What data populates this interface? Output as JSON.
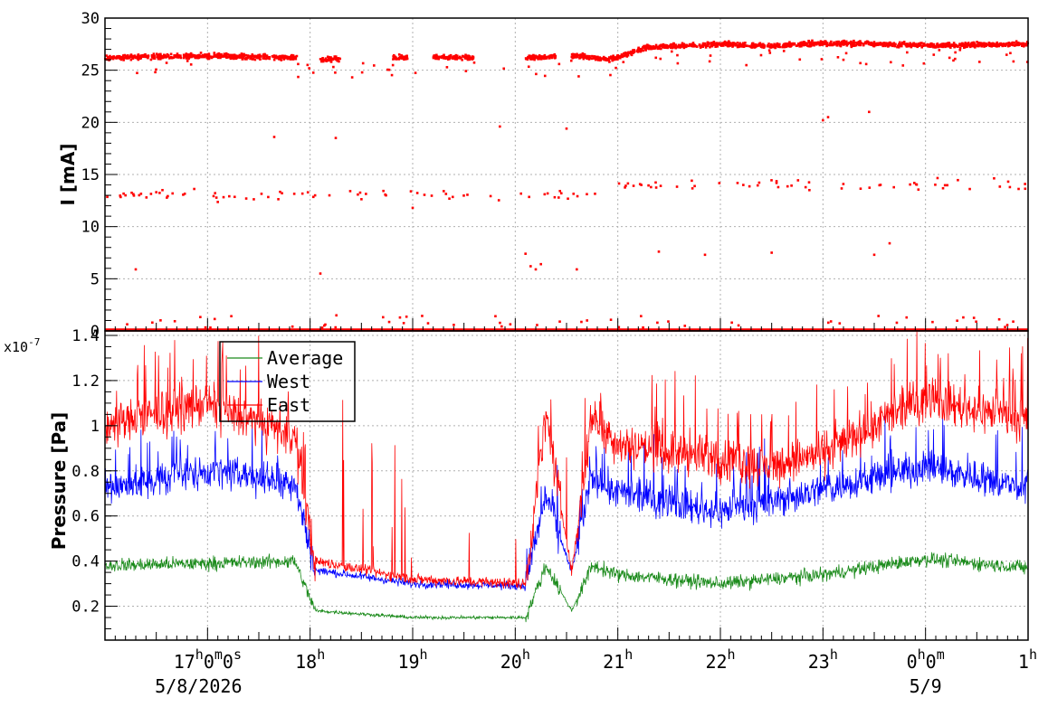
{
  "chart_data": [
    {
      "type": "scatter",
      "ylabel": "I [mA]",
      "ylim": [
        0,
        30
      ],
      "yticks": [
        "0",
        "5",
        "10",
        "15",
        "20",
        "25",
        "30"
      ],
      "grid": true,
      "color": "#ff0000",
      "series": [
        {
          "main_band": [
            {
              "t": 16.0,
              "y": 26.2
            },
            {
              "t": 17.0,
              "y": 26.4
            },
            {
              "t": 17.85,
              "y": 26.2
            },
            {
              "t": 18.1,
              "y": 26.0
            },
            {
              "t": 18.3,
              "y": 26.1
            },
            {
              "t": 18.8,
              "y": 26.2
            },
            {
              "t": 19.5,
              "y": 26.2
            },
            {
              "t": 20.15,
              "y": 26.2
            },
            {
              "t": 20.45,
              "y": 26.3
            },
            {
              "t": 20.6,
              "y": 26.4
            },
            {
              "t": 20.9,
              "y": 26.0
            },
            {
              "t": 21.3,
              "y": 27.2
            },
            {
              "t": 22.0,
              "y": 27.5
            },
            {
              "t": 22.5,
              "y": 27.3
            },
            {
              "t": 23.0,
              "y": 27.6
            },
            {
              "t": 24.0,
              "y": 27.4
            },
            {
              "t": 25.0,
              "y": 27.5
            }
          ],
          "band_segments": [
            [
              16.0,
              17.88
            ],
            [
              18.1,
              18.3
            ],
            [
              18.8,
              18.95
            ],
            [
              19.2,
              19.6
            ],
            [
              20.1,
              20.4
            ],
            [
              20.55,
              25.0
            ]
          ],
          "lower_cluster_range": [
            12.0,
            15.0
          ],
          "baseline": 0
        }
      ]
    },
    {
      "type": "line",
      "ylabel": "Pressure [Pa]",
      "yexponent": "x10-7",
      "ylim": [
        0.05,
        1.42
      ],
      "yticks": [
        "0.2",
        "0.4",
        "0.6",
        "0.8",
        "1",
        "1.2",
        "1.4"
      ],
      "grid": true,
      "series": [
        {
          "name": "Average",
          "color": "#1a8a1a",
          "points": [
            {
              "t": 16.0,
              "y": 0.38
            },
            {
              "t": 17.0,
              "y": 0.39
            },
            {
              "t": 17.85,
              "y": 0.4
            },
            {
              "t": 18.05,
              "y": 0.18
            },
            {
              "t": 19.0,
              "y": 0.15
            },
            {
              "t": 20.1,
              "y": 0.15
            },
            {
              "t": 20.3,
              "y": 0.38
            },
            {
              "t": 20.55,
              "y": 0.18
            },
            {
              "t": 20.75,
              "y": 0.38
            },
            {
              "t": 21.0,
              "y": 0.34
            },
            {
              "t": 22.0,
              "y": 0.3
            },
            {
              "t": 22.5,
              "y": 0.32
            },
            {
              "t": 23.0,
              "y": 0.34
            },
            {
              "t": 24.0,
              "y": 0.41
            },
            {
              "t": 25.0,
              "y": 0.37
            }
          ]
        },
        {
          "name": "West",
          "color": "#0000ff",
          "points": [
            {
              "t": 16.0,
              "y": 0.72
            },
            {
              "t": 17.0,
              "y": 0.8
            },
            {
              "t": 17.85,
              "y": 0.75
            },
            {
              "t": 18.05,
              "y": 0.36
            },
            {
              "t": 19.0,
              "y": 0.3
            },
            {
              "t": 20.1,
              "y": 0.29
            },
            {
              "t": 20.3,
              "y": 0.7
            },
            {
              "t": 20.55,
              "y": 0.35
            },
            {
              "t": 20.75,
              "y": 0.78
            },
            {
              "t": 21.0,
              "y": 0.7
            },
            {
              "t": 22.0,
              "y": 0.62
            },
            {
              "t": 22.5,
              "y": 0.66
            },
            {
              "t": 23.0,
              "y": 0.72
            },
            {
              "t": 24.0,
              "y": 0.82
            },
            {
              "t": 25.0,
              "y": 0.72
            }
          ]
        },
        {
          "name": "East",
          "color": "#ff0000",
          "points": [
            {
              "t": 16.0,
              "y": 1.0
            },
            {
              "t": 17.0,
              "y": 1.1
            },
            {
              "t": 17.85,
              "y": 0.95
            },
            {
              "t": 18.05,
              "y": 0.4
            },
            {
              "t": 19.0,
              "y": 0.32
            },
            {
              "t": 20.1,
              "y": 0.3
            },
            {
              "t": 20.3,
              "y": 1.05
            },
            {
              "t": 20.55,
              "y": 0.35
            },
            {
              "t": 20.75,
              "y": 1.05
            },
            {
              "t": 21.0,
              "y": 0.92
            },
            {
              "t": 22.0,
              "y": 0.85
            },
            {
              "t": 22.5,
              "y": 0.82
            },
            {
              "t": 23.0,
              "y": 0.88
            },
            {
              "t": 24.0,
              "y": 1.12
            },
            {
              "t": 25.0,
              "y": 1.02
            }
          ]
        }
      ],
      "legend": {
        "placement": "top-left",
        "entries": [
          "Average",
          "West",
          "East"
        ]
      }
    }
  ],
  "x_axis": {
    "range_hours": [
      16.0,
      25.0
    ],
    "ticks": [
      {
        "t": 17,
        "main": "17",
        "sup1": "h",
        "mid1": "0",
        "sup2": "m",
        "mid2": "0",
        "sup3": "s"
      },
      {
        "t": 18,
        "main": "18",
        "sup1": "h"
      },
      {
        "t": 19,
        "main": "19",
        "sup1": "h"
      },
      {
        "t": 20,
        "main": "20",
        "sup1": "h"
      },
      {
        "t": 21,
        "main": "21",
        "sup1": "h"
      },
      {
        "t": 22,
        "main": "22",
        "sup1": "h"
      },
      {
        "t": 23,
        "main": "23",
        "sup1": "h"
      },
      {
        "t": 24,
        "main": "0",
        "sup1": "h",
        "mid1": "0",
        "sup2": "m"
      },
      {
        "t": 25,
        "main": "1",
        "sup1": "h"
      }
    ],
    "dates": [
      {
        "t": 17,
        "label": "5/8/2026"
      },
      {
        "t": 24,
        "label": "5/9"
      }
    ]
  }
}
